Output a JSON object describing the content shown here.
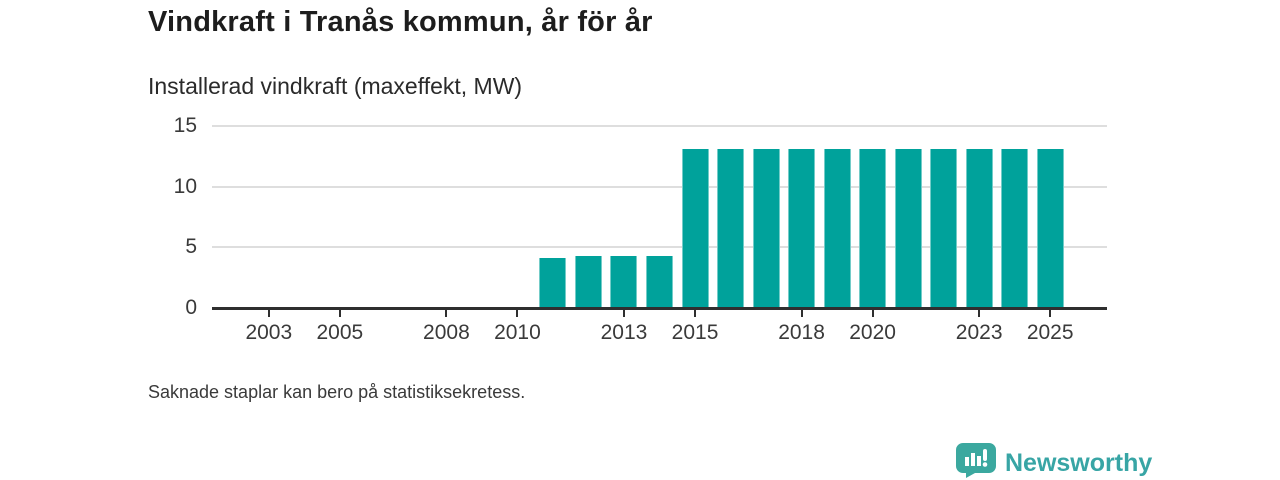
{
  "header": {
    "title": "Vindkraft i Tranås kommun, år för år",
    "subtitle": "Installerad vindkraft (maxeffekt, MW)"
  },
  "chart_data": {
    "type": "bar",
    "title": "Vindkraft i Tranås kommun, år för år",
    "ylabel": "Installerad vindkraft (maxeffekt, MW)",
    "xlabel": "",
    "x": [
      2011,
      2012,
      2013,
      2014,
      2015,
      2016,
      2017,
      2018,
      2019,
      2020,
      2021,
      2022,
      2023,
      2024,
      2025
    ],
    "values": [
      4.1,
      4.3,
      4.3,
      4.3,
      13.1,
      13.1,
      13.1,
      13.1,
      13.1,
      13.1,
      13.1,
      13.1,
      13.1,
      13.1,
      13.1
    ],
    "x_ticks": [
      2003,
      2005,
      2008,
      2010,
      2013,
      2015,
      2018,
      2020,
      2023,
      2025
    ],
    "y_ticks": [
      0,
      5,
      10,
      15
    ],
    "x_domain": [
      2001.4,
      2026.6
    ],
    "ylim": [
      0,
      15.8
    ],
    "grid": true,
    "legend": "none",
    "bar_color": "#00a29b",
    "missing_data_years": [
      2002,
      2003,
      2004,
      2005,
      2006,
      2007,
      2008,
      2009,
      2010
    ]
  },
  "footer": {
    "note": "Saknade staplar kan bero på statistiksekretess.",
    "logo_text": "Newsworthy"
  },
  "colors": {
    "bar": "#00a29b",
    "axis": "#2f2f2f",
    "gridline": "#dedede",
    "logo_icon": "#3ba89f",
    "logo_text": "#38a5a5",
    "title_text": "#1d1d1d"
  }
}
